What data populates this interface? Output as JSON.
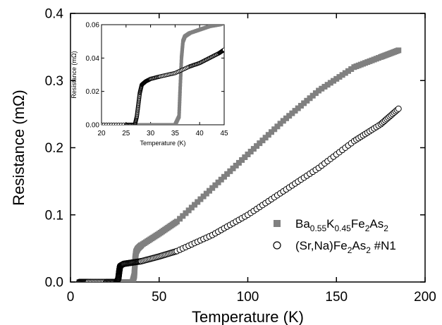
{
  "chart_data": [
    {
      "type": "scatter",
      "title": "",
      "xlabel": "Temperature  (K)",
      "ylabel": "Resistance  (mΩ)",
      "xlim": [
        0,
        200
      ],
      "ylim": [
        0,
        0.4
      ],
      "xticks": [
        "0",
        "50",
        "100",
        "150",
        "200"
      ],
      "yticks": [
        "0.0",
        "0.1",
        "0.2",
        "0.3",
        "0.4"
      ],
      "grid": false,
      "legend": "lower-right",
      "series": [
        {
          "name": "Ba0.55K0.45Fe2As2",
          "color": "#808080",
          "marker": "filled-square",
          "x": [
            5,
            10,
            20,
            30,
            35,
            36,
            36.5,
            37,
            38,
            40,
            50,
            60,
            80,
            100,
            120,
            140,
            160,
            175,
            185
          ],
          "y": [
            0,
            0,
            0,
            0,
            0,
            0.01,
            0.035,
            0.045,
            0.05,
            0.055,
            0.072,
            0.09,
            0.14,
            0.19,
            0.24,
            0.285,
            0.32,
            0.335,
            0.345
          ]
        },
        {
          "name": "(Sr,Na)Fe2As2  #N1",
          "color": "#000000",
          "marker": "open-circle",
          "x": [
            5,
            10,
            20,
            26,
            27,
            27.5,
            28,
            30,
            35,
            40,
            50,
            60,
            80,
            100,
            120,
            140,
            160,
            175,
            185
          ],
          "y": [
            0,
            0,
            0,
            0,
            0.005,
            0.016,
            0.024,
            0.027,
            0.029,
            0.031,
            0.038,
            0.046,
            0.07,
            0.1,
            0.135,
            0.17,
            0.21,
            0.235,
            0.258
          ]
        }
      ],
      "legend_entries": [
        {
          "base": "Ba",
          "s1": "0.55",
          "m1": "K",
          "s2": "0.45",
          "m2": "Fe",
          "s3": "2",
          "m3": "As",
          "s4": "2",
          "tail": ""
        },
        {
          "base": "(Sr,Na)Fe",
          "s1": "2",
          "m1": "As",
          "s2": "2",
          "m2": "  #N1",
          "s3": "",
          "m3": "",
          "s4": "",
          "tail": ""
        }
      ]
    },
    {
      "type": "scatter",
      "title": "",
      "xlabel": "Temperature (K)",
      "ylabel": "Resistance (mΩ)",
      "xlim": [
        20,
        45
      ],
      "ylim": [
        0,
        0.06
      ],
      "xticks": [
        "20",
        "25",
        "30",
        "35",
        "40",
        "45"
      ],
      "yticks": [
        "0.00",
        "0.02",
        "0.04",
        "0.06"
      ],
      "grid": false,
      "series": [
        {
          "name": "Ba0.55K0.45Fe2As2",
          "color": "#808080",
          "marker": "filled-square",
          "x": [
            20,
            25,
            30,
            35,
            35.8,
            36,
            36.3,
            36.6,
            37,
            38,
            40,
            42,
            44,
            45
          ],
          "y": [
            0,
            0,
            0,
            0,
            0.005,
            0.02,
            0.04,
            0.05,
            0.053,
            0.055,
            0.057,
            0.059,
            0.06,
            0.061
          ]
        },
        {
          "name": "(Sr,Na)Fe2As2  #N1",
          "color": "#000000",
          "marker": "open-circle",
          "x": [
            20,
            25,
            26.8,
            27.2,
            27.5,
            27.8,
            28.2,
            29,
            30,
            32,
            35,
            38,
            40,
            42,
            44,
            45
          ],
          "y": [
            0,
            0,
            0,
            0.005,
            0.012,
            0.019,
            0.024,
            0.026,
            0.0275,
            0.029,
            0.031,
            0.035,
            0.037,
            0.04,
            0.043,
            0.045
          ]
        }
      ]
    }
  ]
}
